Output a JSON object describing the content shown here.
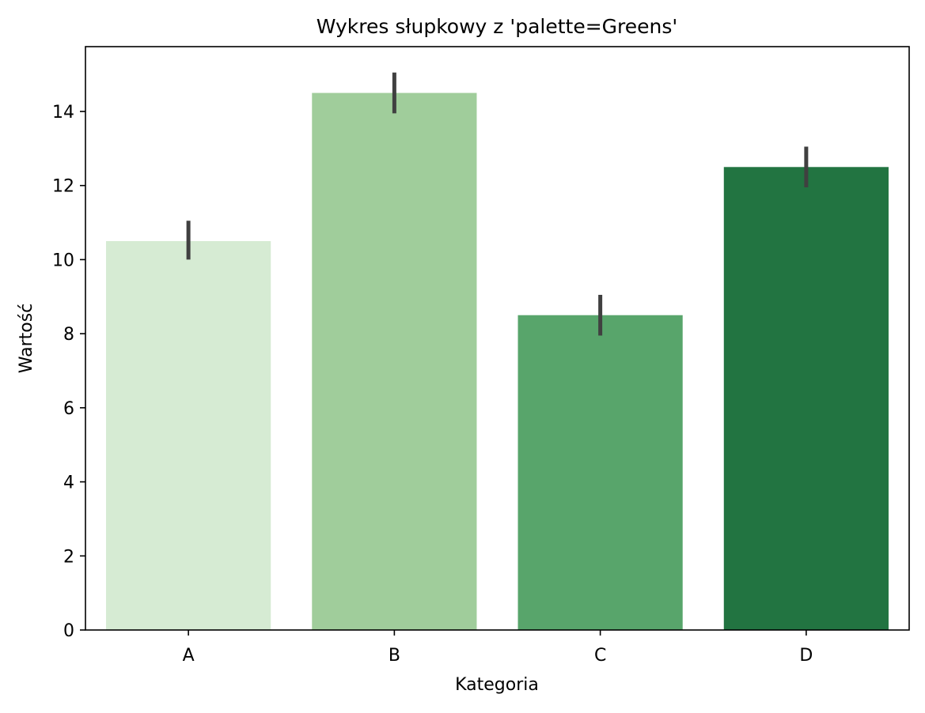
{
  "chart_data": {
    "type": "bar",
    "title": "Wykres słupkowy z 'palette=Greens'",
    "xlabel": "Kategoria",
    "ylabel": "Wartość",
    "categories": [
      "A",
      "B",
      "C",
      "D"
    ],
    "values": [
      10.5,
      14.5,
      8.5,
      12.5
    ],
    "error_bars": [
      {
        "low": 10.0,
        "high": 11.05
      },
      {
        "low": 13.95,
        "high": 15.05
      },
      {
        "low": 7.95,
        "high": 9.05
      },
      {
        "low": 11.95,
        "high": 13.05
      }
    ],
    "colors": [
      "#d6ebd3",
      "#a0cd9b",
      "#58a56b",
      "#227441"
    ],
    "error_bar_color": "#404040",
    "ylim": [
      0,
      15.75
    ],
    "yticks": [
      0,
      2,
      4,
      6,
      8,
      10,
      12,
      14
    ],
    "grid": false,
    "legend": "none"
  }
}
